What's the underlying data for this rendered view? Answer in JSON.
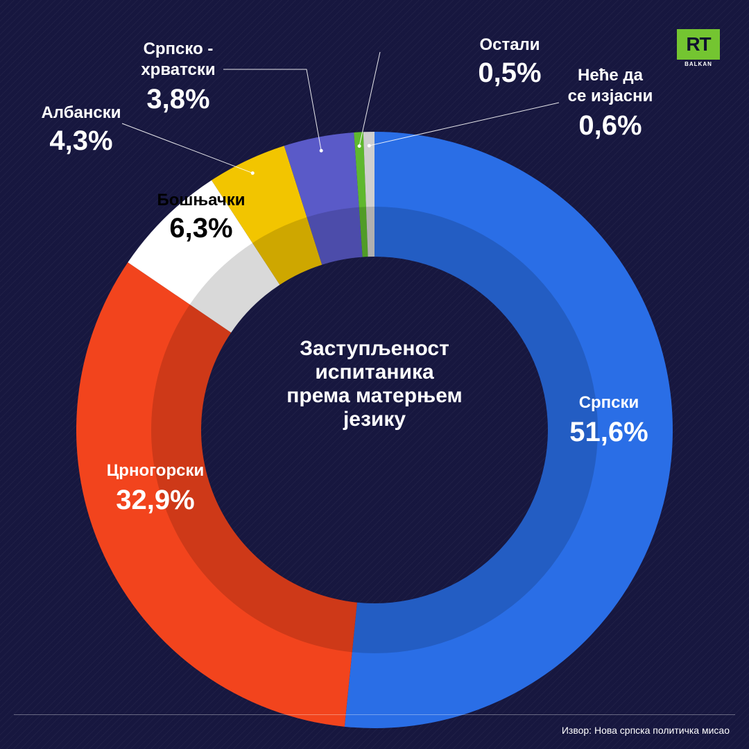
{
  "chart_data": {
    "type": "pie",
    "variant": "donut",
    "title": "Заступљеност испитаника према матерњем језику",
    "title_lines": [
      "Заступљеност",
      "испитаника",
      "према матерњем",
      "језику"
    ],
    "slices": [
      {
        "key": "srpski",
        "label": "Српски",
        "label_lines": [
          "Српски"
        ],
        "value": 51.6,
        "value_text": "51,6%",
        "color": "#2a6ee6"
      },
      {
        "key": "crnogorski",
        "label": "Црногорски",
        "label_lines": [
          "Црногорски"
        ],
        "value": 32.9,
        "value_text": "32,9%",
        "color": "#f2441d"
      },
      {
        "key": "bosnjacki",
        "label": "Бошњачки",
        "label_lines": [
          "Бошњачки"
        ],
        "value": 6.3,
        "value_text": "6,3%",
        "color": "#ffffff"
      },
      {
        "key": "albanski",
        "label": "Албански",
        "label_lines": [
          "Албански"
        ],
        "value": 4.3,
        "value_text": "4,3%",
        "color": "#f2c500"
      },
      {
        "key": "srpskohrvatski",
        "label": "Српско - хрватски",
        "label_lines": [
          "Српско -",
          "хрватски"
        ],
        "value": 3.8,
        "value_text": "3,8%",
        "color": "#5a5ac8"
      },
      {
        "key": "ostali",
        "label": "Остали",
        "label_lines": [
          "Остали"
        ],
        "value": 0.5,
        "value_text": "0,5%",
        "color": "#5fb82e"
      },
      {
        "key": "neceda",
        "label": "Неће да се изјасни",
        "label_lines": [
          "Неће да",
          "се изјасни"
        ],
        "value": 0.6,
        "value_text": "0,6%",
        "color": "#cfcfcf"
      }
    ]
  },
  "logo": {
    "text": "RT",
    "subtext": "BALKAN"
  },
  "source": "Извор: Нова српска политичка мисао"
}
